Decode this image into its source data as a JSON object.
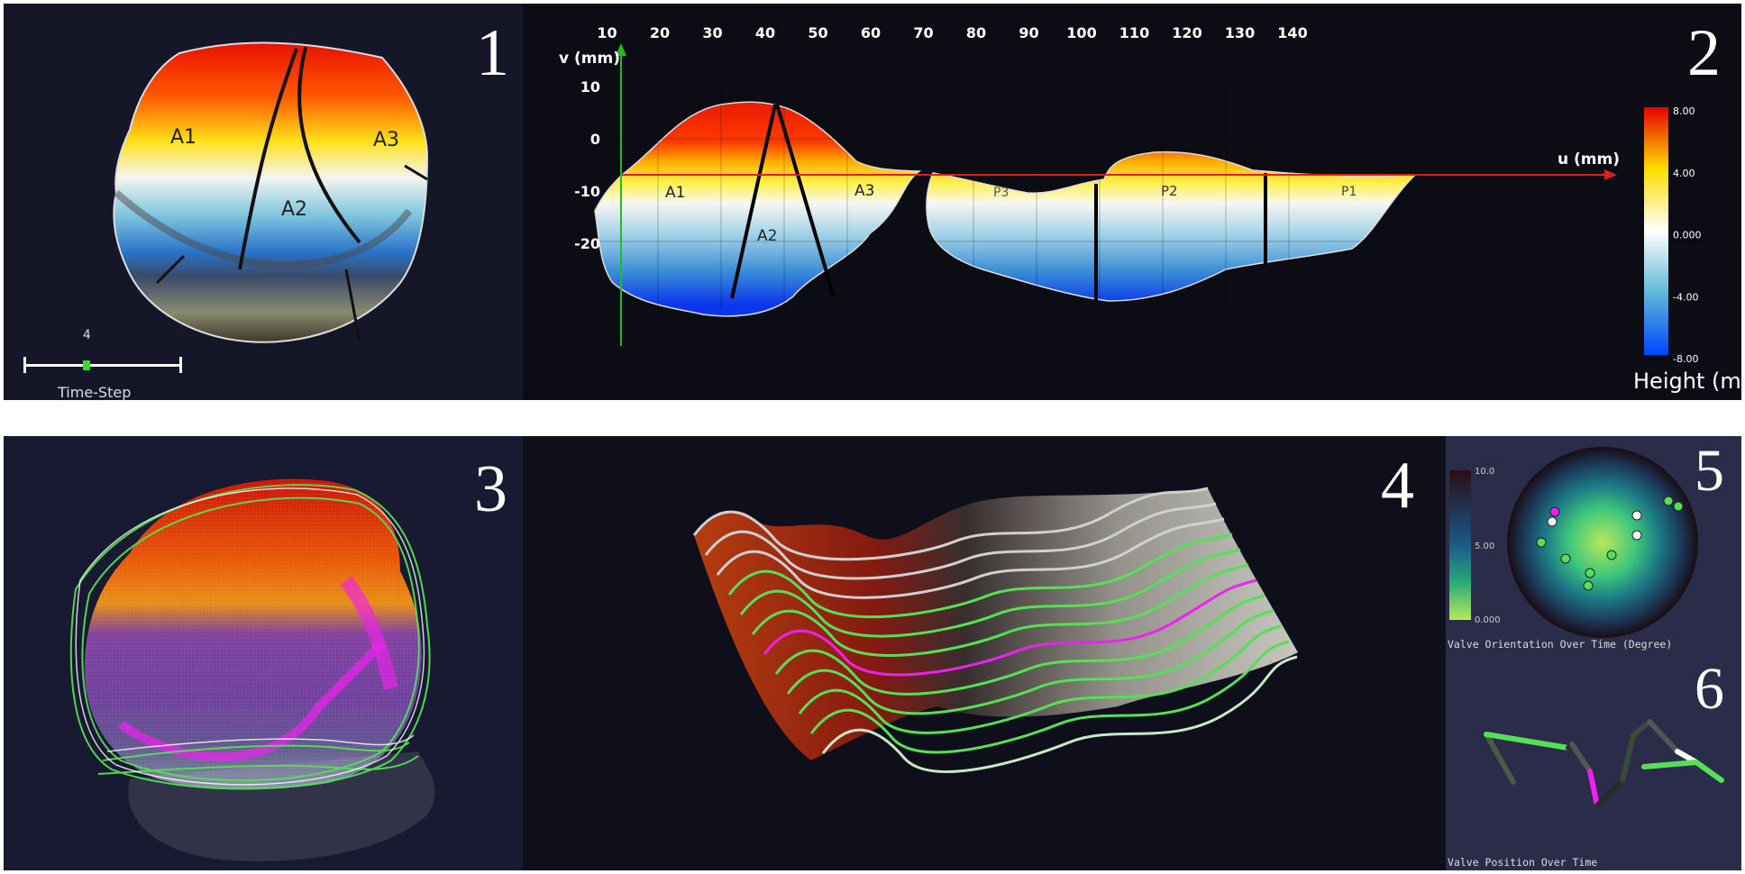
{
  "panels": {
    "p1": {
      "number": "1",
      "labels": {
        "a1": "A1",
        "a2": "A2",
        "a3": "A3"
      },
      "timestep": {
        "value": "4",
        "label": "Time-Step",
        "fraction": 0.4
      }
    },
    "p2": {
      "number": "2",
      "x_ticks": [
        "10",
        "20",
        "30",
        "40",
        "50",
        "60",
        "70",
        "80",
        "90",
        "100",
        "110",
        "120",
        "130",
        "140"
      ],
      "y_ticks": [
        "10",
        "0",
        "-10",
        "-20"
      ],
      "v_axis": "v (mm)",
      "u_axis": "u (mm)",
      "region_labels": {
        "a1": "A1",
        "a2": "A2",
        "a3": "A3",
        "p3": "P3",
        "p2": "P2",
        "p1": "P1"
      },
      "colorbar": {
        "ticks": [
          "8.00",
          "4.00",
          "0.000",
          "-4.00",
          "-8.00"
        ],
        "title": "Height (mm)",
        "colors": [
          "#e60000",
          "#ffdd00",
          "#ffffff",
          "#5eb8d8",
          "#0044ff"
        ]
      }
    },
    "p3": {
      "number": "3"
    },
    "p4": {
      "number": "4"
    },
    "p5": {
      "number": "5",
      "colorbar_ticks": [
        "10.0",
        "5.00",
        "0.000"
      ],
      "caption": "Valve Orientation Over Time (Degree)"
    },
    "p6": {
      "number": "6",
      "caption": "Valve Position Over Time"
    }
  },
  "colors": {
    "panel_bg": "#111422",
    "panel_bg_light": "#2b2c4a",
    "green": "#55e055",
    "magenta": "#ee22ee",
    "axis_red": "#e02020",
    "axis_green": "#22bb22"
  }
}
